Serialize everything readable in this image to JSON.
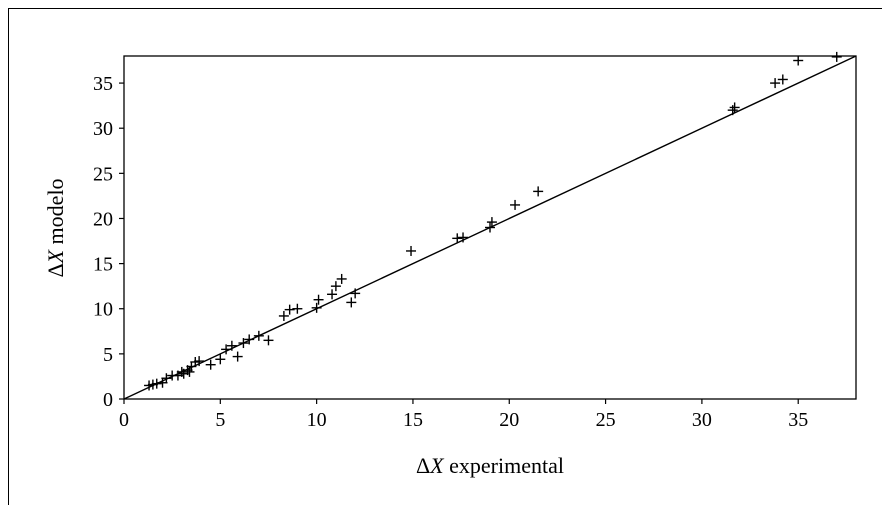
{
  "chart_data": {
    "type": "scatter",
    "title": "",
    "xlabel": {
      "delta": "Δ",
      "var": "X",
      "text": " experimental"
    },
    "ylabel": {
      "delta": "Δ",
      "var": "X",
      "text": " modelo"
    },
    "xlim": [
      0,
      38
    ],
    "ylim": [
      0,
      38
    ],
    "xticks": [
      "0",
      "5",
      "10",
      "15",
      "20",
      "25",
      "30",
      "35"
    ],
    "yticks": [
      "0",
      "5",
      "10",
      "15",
      "20",
      "25",
      "30",
      "35"
    ],
    "grid": false,
    "legend": "none",
    "reference_line": {
      "from": [
        0,
        0
      ],
      "to": [
        38,
        38
      ]
    },
    "series": [
      {
        "x": [
          1.3,
          1.5,
          1.7,
          2.0,
          2.2,
          2.5,
          2.8,
          3.0,
          3.1,
          3.3,
          3.4,
          3.5,
          3.7,
          3.9,
          4.5,
          5.0,
          5.3,
          5.6,
          5.9,
          6.2,
          6.5,
          7.0,
          7.5,
          8.3,
          8.6,
          9.0,
          10.0,
          10.1,
          10.8,
          11.0,
          11.3,
          11.8,
          12.0,
          14.9,
          17.3,
          17.6,
          19.0,
          19.1,
          20.3,
          21.5,
          31.6,
          31.7,
          33.8,
          34.2,
          35.0,
          37.0
        ],
        "y": [
          1.5,
          1.6,
          1.7,
          1.8,
          2.3,
          2.6,
          2.6,
          3.0,
          2.8,
          3.2,
          3.0,
          3.6,
          4.1,
          4.2,
          3.8,
          4.4,
          5.5,
          5.9,
          4.7,
          6.2,
          6.6,
          7.0,
          6.5,
          9.2,
          9.9,
          10.0,
          10.1,
          11.0,
          11.6,
          12.5,
          13.3,
          10.7,
          11.7,
          16.4,
          17.8,
          17.9,
          19.0,
          19.6,
          21.5,
          23.0,
          32.0,
          32.3,
          35.0,
          35.4,
          37.5,
          37.9
        ]
      }
    ]
  },
  "colors": {
    "marker": "#000000",
    "line": "#000000",
    "axes": "#000000",
    "background": "#ffffff"
  }
}
